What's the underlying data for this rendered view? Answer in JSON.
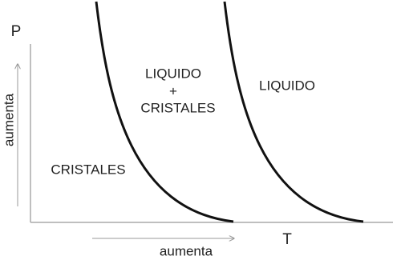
{
  "axes": {
    "y_label": "P",
    "y_direction": "aumenta",
    "x_label": "T",
    "x_direction": "aumenta"
  },
  "regions": [
    {
      "label_lines": [
        "CRISTALES"
      ]
    },
    {
      "label_lines": [
        "LIQUIDO",
        "+",
        "CRISTALES"
      ]
    },
    {
      "label_lines": [
        "LIQUIDO"
      ]
    }
  ]
}
